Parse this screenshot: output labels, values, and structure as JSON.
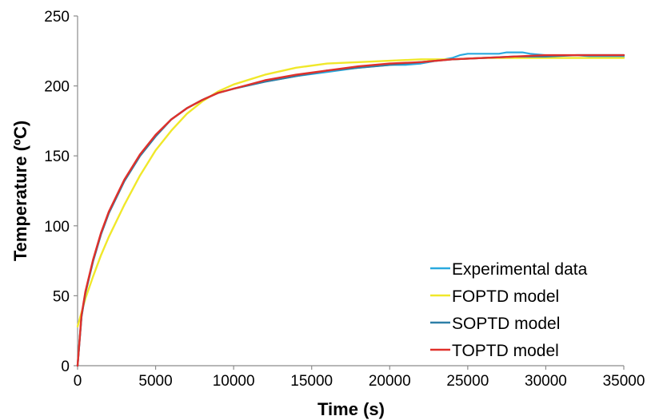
{
  "chart_data": {
    "type": "line",
    "title": "",
    "xlabel": "Time (s)",
    "ylabel": "Temperature (ºC)",
    "xlim": [
      0,
      35000
    ],
    "ylim": [
      0,
      250
    ],
    "xticks": [
      0,
      5000,
      10000,
      15000,
      20000,
      25000,
      30000,
      35000
    ],
    "yticks": [
      0,
      50,
      100,
      150,
      200,
      250
    ],
    "xtick_labels": [
      "0",
      "5000",
      "10000",
      "15000",
      "20000",
      "25000",
      "30000",
      "35000"
    ],
    "ytick_labels": [
      "0",
      "50",
      "100",
      "150",
      "200",
      "250"
    ],
    "grid": false,
    "legend_position": "bottom-right",
    "series": [
      {
        "name": "Experimental data",
        "color": "#29a9df",
        "x": [
          0,
          250,
          500,
          1000,
          1500,
          2000,
          3000,
          4000,
          5000,
          6000,
          7000,
          8000,
          9000,
          10000,
          12000,
          14000,
          16000,
          18000,
          20000,
          21000,
          22000,
          23000,
          24000,
          24500,
          25000,
          26000,
          27000,
          27500,
          28000,
          28500,
          29000,
          30000,
          31000,
          32000,
          33000,
          34000,
          35000
        ],
        "y": [
          0,
          35,
          52,
          75,
          94,
          109,
          132,
          150,
          164,
          176,
          184,
          190,
          195,
          198,
          203,
          207,
          210,
          213,
          215,
          215,
          216,
          218,
          220,
          222,
          223,
          223,
          223,
          224,
          224,
          224,
          223,
          222,
          222,
          222,
          221,
          221,
          221
        ]
      },
      {
        "name": "FOPTD model",
        "color": "#f0e82a",
        "x": [
          0,
          500,
          1000,
          1500,
          2000,
          3000,
          4000,
          5000,
          6000,
          7000,
          8000,
          9000,
          10000,
          12000,
          14000,
          16000,
          18000,
          20000,
          22000,
          24000,
          26000,
          28000,
          30000,
          32000,
          35000
        ],
        "y": [
          28,
          48,
          64,
          79,
          92,
          115,
          136,
          154,
          168,
          180,
          189,
          196,
          201,
          208,
          213,
          216,
          217,
          218,
          219,
          219,
          220,
          220,
          220,
          220,
          220
        ]
      },
      {
        "name": "SOPTD model",
        "color": "#2d7fa7",
        "x": [
          0,
          250,
          500,
          1000,
          1500,
          2000,
          3000,
          4000,
          5000,
          6000,
          7000,
          8000,
          9000,
          10000,
          12000,
          14000,
          16000,
          18000,
          20000,
          22000,
          24000,
          26000,
          28000,
          30000,
          32000,
          35000
        ],
        "y": [
          0,
          35,
          52,
          75,
          94,
          109,
          132,
          150,
          164,
          176,
          184,
          190,
          195,
          198,
          203,
          207,
          211,
          213,
          215,
          217,
          219,
          220,
          221,
          221,
          222,
          222
        ]
      },
      {
        "name": "TOPTD model",
        "color": "#e0302a",
        "x": [
          0,
          250,
          500,
          1000,
          1500,
          2000,
          3000,
          4000,
          5000,
          6000,
          7000,
          8000,
          9000,
          10000,
          12000,
          14000,
          16000,
          18000,
          20000,
          22000,
          24000,
          26000,
          28000,
          30000,
          32000,
          35000
        ],
        "y": [
          0,
          36,
          53,
          76,
          95,
          110,
          133,
          151,
          165,
          176,
          184,
          190,
          195,
          198,
          204,
          208,
          211,
          214,
          216,
          217,
          219,
          220,
          221,
          222,
          222,
          222
        ]
      }
    ]
  }
}
